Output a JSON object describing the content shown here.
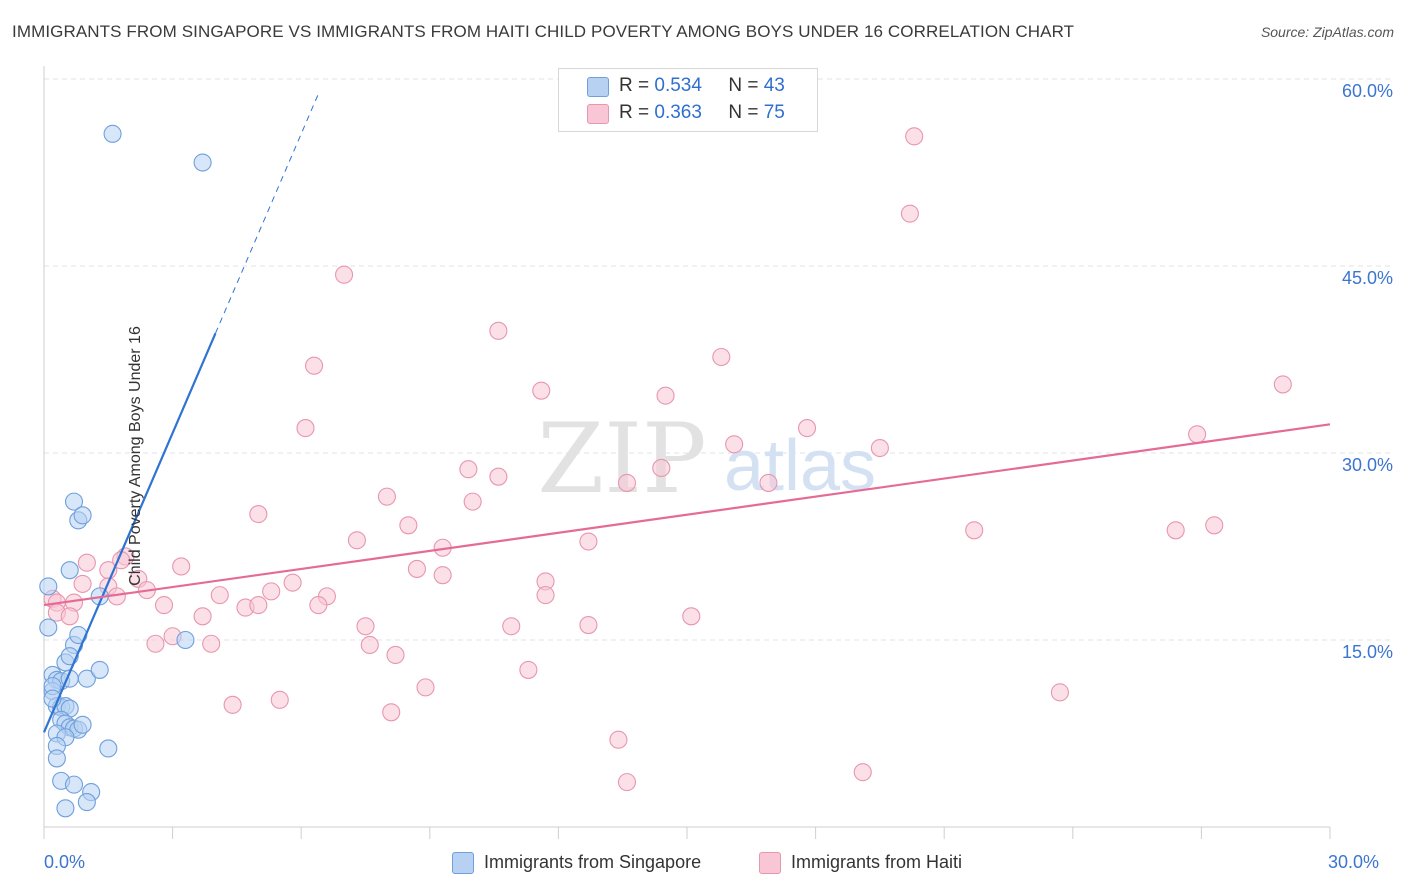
{
  "title": "IMMIGRANTS FROM SINGAPORE VS IMMIGRANTS FROM HAITI CHILD POVERTY AMONG BOYS UNDER 16 CORRELATION CHART",
  "source": "Source: ZipAtlas.com",
  "watermark": {
    "zip": "ZIP",
    "atlas": "atlas"
  },
  "legend": {
    "r_label": "R =",
    "n_label": "N =",
    "rows": [
      {
        "name": "Immigrants from Singapore",
        "r": "0.534",
        "n": "43"
      },
      {
        "name": "Immigrants from Haiti",
        "r": "0.363",
        "n": "75"
      }
    ]
  },
  "colors": {
    "singapore_fill": "#b7d1f3",
    "singapore_stroke": "#6f9fdc",
    "singapore_line": "#2f74d0",
    "haiti_fill": "#f8c6d5",
    "haiti_stroke": "#e896b0",
    "haiti_line": "#e56b97",
    "tick_text": "#3b75d0",
    "grid": "#dfe3ea"
  },
  "chart_data": {
    "type": "scatter",
    "title": "IMMIGRANTS FROM SINGAPORE VS IMMIGRANTS FROM HAITI CHILD POVERTY AMONG BOYS UNDER 16 CORRELATION CHART",
    "xlabel": "",
    "ylabel": "Child Poverty Among Boys Under 16",
    "xlim": [
      0,
      30
    ],
    "ylim": [
      0,
      60
    ],
    "x_tick_labels": [
      "0.0%",
      "30.0%"
    ],
    "y_ticks": [
      15,
      30,
      45,
      60
    ],
    "y_tick_labels": [
      "15.0%",
      "30.0%",
      "45.0%",
      "60.0%"
    ],
    "grid": true,
    "series": [
      {
        "name": "Immigrants from Singapore",
        "r": 0.534,
        "n": 43,
        "trend": {
          "x0": 0,
          "y0": 7.6,
          "x1": 4.0,
          "y1": 39.6,
          "dash_to_x": 6.4,
          "dash_to_y": 58.8
        },
        "points": [
          [
            1.6,
            55.6
          ],
          [
            3.7,
            53.3
          ],
          [
            0.1,
            19.3
          ],
          [
            0.1,
            16.0
          ],
          [
            0.6,
            20.6
          ],
          [
            0.7,
            26.1
          ],
          [
            0.8,
            24.6
          ],
          [
            0.9,
            25.0
          ],
          [
            0.7,
            14.6
          ],
          [
            0.8,
            15.4
          ],
          [
            0.5,
            13.2
          ],
          [
            0.6,
            13.7
          ],
          [
            1.3,
            18.5
          ],
          [
            3.3,
            15.0
          ],
          [
            0.2,
            12.2
          ],
          [
            0.3,
            11.8
          ],
          [
            0.4,
            11.7
          ],
          [
            0.6,
            11.9
          ],
          [
            1.0,
            11.9
          ],
          [
            1.3,
            12.6
          ],
          [
            0.2,
            10.9
          ],
          [
            0.2,
            11.3
          ],
          [
            0.3,
            9.7
          ],
          [
            0.4,
            9.6
          ],
          [
            0.5,
            9.7
          ],
          [
            0.6,
            9.5
          ],
          [
            0.4,
            8.6
          ],
          [
            0.5,
            8.3
          ],
          [
            0.6,
            8.0
          ],
          [
            0.7,
            7.9
          ],
          [
            0.8,
            7.8
          ],
          [
            0.9,
            8.2
          ],
          [
            0.3,
            7.5
          ],
          [
            0.5,
            7.2
          ],
          [
            0.3,
            6.5
          ],
          [
            1.5,
            6.3
          ],
          [
            0.3,
            5.5
          ],
          [
            0.4,
            3.7
          ],
          [
            0.7,
            3.4
          ],
          [
            1.1,
            2.8
          ],
          [
            1.0,
            2.0
          ],
          [
            0.5,
            1.5
          ],
          [
            0.2,
            10.3
          ]
        ]
      },
      {
        "name": "Immigrants from Haiti",
        "r": 0.363,
        "n": 75,
        "trend": {
          "x0": 0,
          "y0": 17.8,
          "x1": 30,
          "y1": 32.3
        },
        "points": [
          [
            20.3,
            55.4
          ],
          [
            20.2,
            49.2
          ],
          [
            7.0,
            44.3
          ],
          [
            10.6,
            39.8
          ],
          [
            6.3,
            37.0
          ],
          [
            15.8,
            37.7
          ],
          [
            11.6,
            35.0
          ],
          [
            14.5,
            34.6
          ],
          [
            6.1,
            32.0
          ],
          [
            17.8,
            32.0
          ],
          [
            16.1,
            30.7
          ],
          [
            26.9,
            31.5
          ],
          [
            19.5,
            30.4
          ],
          [
            9.9,
            28.7
          ],
          [
            10.6,
            28.1
          ],
          [
            14.4,
            28.8
          ],
          [
            13.6,
            27.6
          ],
          [
            16.9,
            27.6
          ],
          [
            28.9,
            35.5
          ],
          [
            8.0,
            26.5
          ],
          [
            10.0,
            26.1
          ],
          [
            5.0,
            25.1
          ],
          [
            8.5,
            24.2
          ],
          [
            7.3,
            23.0
          ],
          [
            12.7,
            22.9
          ],
          [
            9.3,
            22.4
          ],
          [
            21.7,
            23.8
          ],
          [
            26.4,
            23.8
          ],
          [
            27.3,
            24.2
          ],
          [
            1.9,
            21.7
          ],
          [
            1.0,
            21.2
          ],
          [
            3.2,
            20.9
          ],
          [
            8.7,
            20.7
          ],
          [
            9.3,
            20.2
          ],
          [
            1.5,
            20.6
          ],
          [
            2.2,
            19.9
          ],
          [
            5.8,
            19.6
          ],
          [
            11.7,
            19.7
          ],
          [
            2.4,
            19.0
          ],
          [
            5.3,
            18.9
          ],
          [
            4.1,
            18.6
          ],
          [
            6.6,
            18.5
          ],
          [
            11.7,
            18.6
          ],
          [
            0.2,
            18.3
          ],
          [
            0.3,
            18.0
          ],
          [
            0.7,
            18.0
          ],
          [
            2.8,
            17.8
          ],
          [
            4.7,
            17.6
          ],
          [
            5.0,
            17.8
          ],
          [
            6.4,
            17.8
          ],
          [
            0.3,
            17.2
          ],
          [
            0.6,
            16.9
          ],
          [
            3.7,
            16.9
          ],
          [
            7.5,
            16.1
          ],
          [
            10.9,
            16.1
          ],
          [
            12.7,
            16.2
          ],
          [
            15.1,
            16.9
          ],
          [
            3.0,
            15.3
          ],
          [
            2.6,
            14.7
          ],
          [
            3.9,
            14.7
          ],
          [
            7.6,
            14.6
          ],
          [
            8.2,
            13.8
          ],
          [
            11.3,
            12.6
          ],
          [
            8.9,
            11.2
          ],
          [
            1.8,
            21.4
          ],
          [
            1.5,
            19.3
          ],
          [
            1.7,
            18.5
          ],
          [
            0.9,
            19.5
          ],
          [
            23.7,
            10.8
          ],
          [
            4.4,
            9.8
          ],
          [
            5.5,
            10.2
          ],
          [
            8.1,
            9.2
          ],
          [
            13.4,
            7.0
          ],
          [
            13.6,
            3.6
          ],
          [
            19.1,
            4.4
          ]
        ]
      }
    ]
  }
}
